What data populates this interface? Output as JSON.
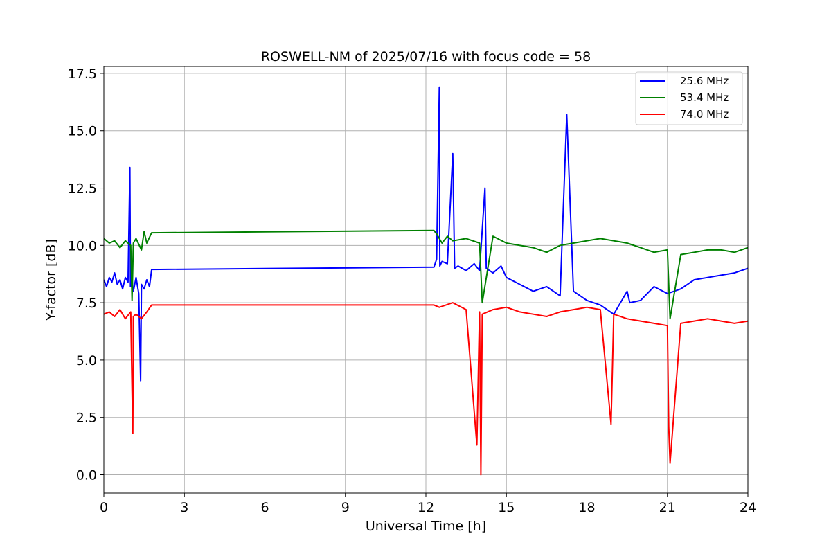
{
  "chart_data": {
    "type": "line",
    "title": "ROSWELL-NM of 2025/07/16 with focus code = 58",
    "xlabel": "Universal Time [h]",
    "ylabel": "Y-factor [dB]",
    "xlim": [
      0,
      24
    ],
    "ylim": [
      -0.8,
      17.8
    ],
    "xticks": [
      0,
      3,
      6,
      9,
      12,
      15,
      18,
      21,
      24
    ],
    "xtick_labels": [
      "0",
      "3",
      "6",
      "9",
      "12",
      "15",
      "18",
      "21",
      "24"
    ],
    "yticks": [
      0.0,
      2.5,
      5.0,
      7.5,
      10.0,
      12.5,
      15.0,
      17.5
    ],
    "ytick_labels": [
      "0.0",
      "2.5",
      "5.0",
      "7.5",
      "10.0",
      "12.5",
      "15.0",
      "17.5"
    ],
    "grid": true,
    "legend": "top-right",
    "series": [
      {
        "name": "25.6 MHz",
        "color": "#0000ff",
        "x": [
          0.0,
          0.1,
          0.2,
          0.3,
          0.4,
          0.5,
          0.6,
          0.7,
          0.8,
          0.9,
          0.97,
          0.99,
          1.05,
          1.1,
          1.2,
          1.3,
          1.37,
          1.4,
          1.5,
          1.6,
          1.7,
          1.78,
          12.3,
          12.4,
          12.5,
          12.52,
          12.6,
          12.8,
          13.0,
          13.07,
          13.2,
          13.5,
          13.8,
          14.0,
          14.2,
          14.25,
          14.5,
          14.8,
          15.0,
          15.5,
          16.0,
          16.5,
          17.0,
          17.25,
          17.5,
          18.0,
          18.5,
          19.0,
          19.5,
          19.6,
          20.0,
          20.5,
          21.0,
          21.5,
          22.0,
          22.5,
          23.0,
          23.5,
          24.0
        ],
        "y": [
          8.5,
          8.2,
          8.6,
          8.4,
          8.8,
          8.3,
          8.5,
          8.1,
          8.6,
          8.4,
          13.4,
          8.2,
          8.5,
          8.0,
          8.6,
          7.9,
          4.1,
          8.3,
          8.1,
          8.5,
          8.2,
          8.95,
          9.05,
          9.4,
          16.9,
          9.1,
          9.3,
          9.2,
          14.0,
          9.0,
          9.1,
          8.9,
          9.2,
          8.9,
          12.5,
          9.0,
          8.8,
          9.1,
          8.6,
          8.3,
          8.0,
          8.2,
          7.8,
          15.7,
          8.0,
          7.6,
          7.4,
          7.0,
          8.0,
          7.5,
          7.6,
          8.2,
          7.9,
          8.1,
          8.5,
          8.6,
          8.7,
          8.8,
          9.0
        ]
      },
      {
        "name": "53.4 MHz",
        "color": "#008000",
        "x": [
          0.0,
          0.2,
          0.4,
          0.6,
          0.8,
          1.0,
          1.05,
          1.1,
          1.2,
          1.4,
          1.5,
          1.6,
          1.78,
          12.3,
          12.4,
          12.6,
          12.8,
          13.0,
          13.5,
          14.0,
          14.1,
          14.5,
          15.0,
          15.5,
          16.0,
          16.5,
          17.0,
          17.5,
          18.0,
          18.5,
          19.0,
          19.5,
          20.0,
          20.5,
          21.0,
          21.1,
          21.5,
          22.0,
          22.5,
          23.0,
          23.5,
          24.0
        ],
        "y": [
          10.3,
          10.1,
          10.2,
          9.9,
          10.2,
          10.0,
          7.6,
          10.1,
          10.3,
          9.8,
          10.6,
          10.1,
          10.55,
          10.65,
          10.5,
          10.1,
          10.4,
          10.2,
          10.3,
          10.1,
          7.5,
          10.4,
          10.1,
          10.0,
          9.9,
          9.7,
          10.0,
          10.1,
          10.2,
          10.3,
          10.2,
          10.1,
          9.9,
          9.7,
          9.8,
          6.8,
          9.6,
          9.7,
          9.8,
          9.8,
          9.7,
          9.9
        ]
      },
      {
        "name": "74.0 MHz",
        "color": "#ff0000",
        "x": [
          0.0,
          0.2,
          0.4,
          0.6,
          0.8,
          1.0,
          1.08,
          1.1,
          1.2,
          1.4,
          1.6,
          1.78,
          12.3,
          12.5,
          13.0,
          13.5,
          13.9,
          14.0,
          14.05,
          14.1,
          14.5,
          15.0,
          15.5,
          16.0,
          16.5,
          17.0,
          17.5,
          18.0,
          18.5,
          18.9,
          19.0,
          19.5,
          20.0,
          20.5,
          21.0,
          21.05,
          21.1,
          21.5,
          22.0,
          22.5,
          23.0,
          23.5,
          24.0
        ],
        "y": [
          7.0,
          7.1,
          6.9,
          7.2,
          6.8,
          7.1,
          1.8,
          6.9,
          7.0,
          6.8,
          7.1,
          7.4,
          7.4,
          7.3,
          7.5,
          7.2,
          1.3,
          7.1,
          0.0,
          7.0,
          7.2,
          7.3,
          7.1,
          7.0,
          6.9,
          7.1,
          7.2,
          7.3,
          7.2,
          2.2,
          7.0,
          6.8,
          6.7,
          6.6,
          6.5,
          2.1,
          0.5,
          6.6,
          6.7,
          6.8,
          6.7,
          6.6,
          6.7
        ]
      }
    ]
  }
}
